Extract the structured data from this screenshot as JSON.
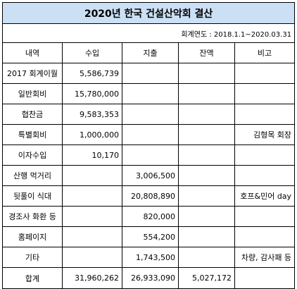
{
  "title": "2020년 한국 건설산악회 결산",
  "period": "회계연도 : 2018.1.1~2020.03.31",
  "headers": [
    "내역",
    "수입",
    "지출",
    "잔액",
    "비고"
  ],
  "rows": [
    {
      "item": "2017 회계이월",
      "income": "5,586,739",
      "expense": "",
      "balance": "",
      "note": ""
    },
    {
      "item": "일반회비",
      "income": "15,780,000",
      "expense": "",
      "balance": "",
      "note": ""
    },
    {
      "item": "협찬금",
      "income": "9,583,353",
      "expense": "",
      "balance": "",
      "note": ""
    },
    {
      "item": "특별회비",
      "income": "1,000,000",
      "expense": "",
      "balance": "",
      "note": "김형목 회장"
    },
    {
      "item": "이자수입",
      "income": "10,170",
      "expense": "",
      "balance": "",
      "note": ""
    },
    {
      "item": "산행 먹거리",
      "income": "",
      "expense": "3,006,500",
      "balance": "",
      "note": ""
    },
    {
      "item": "뒷풀이 식대",
      "income": "",
      "expense": "20,808,890",
      "balance": "",
      "note": "호프&민어 day"
    },
    {
      "item": "경조사 화환 등",
      "income": "",
      "expense": "820,000",
      "balance": "",
      "note": ""
    },
    {
      "item": "홈페이지",
      "income": "",
      "expense": "554,200",
      "balance": "",
      "note": ""
    },
    {
      "item": "기타",
      "income": "",
      "expense": "1,743,500",
      "balance": "",
      "note": "차량, 감사패 등"
    }
  ],
  "total": {
    "item": "합계",
    "income": "31,960,262",
    "expense": "26,933,090",
    "balance": "5,027,172",
    "note": ""
  }
}
